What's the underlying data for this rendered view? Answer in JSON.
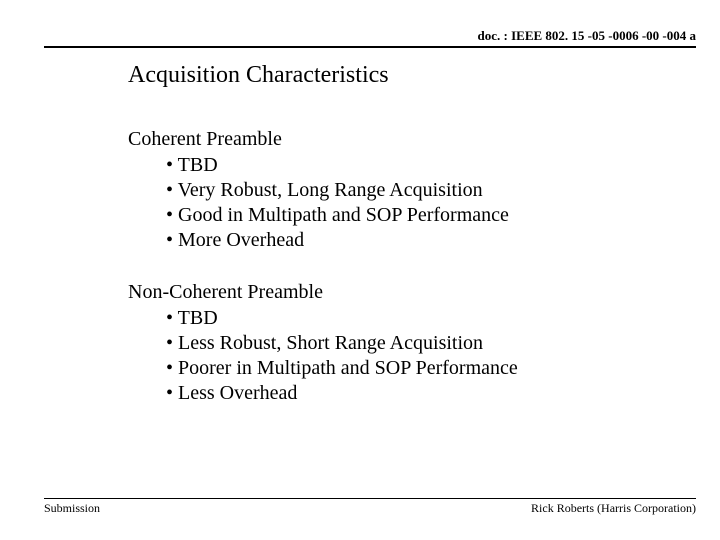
{
  "header": {
    "doc_ref": "doc. : IEEE 802. 15 -05 -0006 -00 -004 a"
  },
  "title": "Acquisition Characteristics",
  "sections": [
    {
      "heading": "Coherent Preamble",
      "bullets": [
        "TBD",
        "Very Robust, Long Range Acquisition",
        "Good in Multipath and SOP Performance",
        "More Overhead"
      ]
    },
    {
      "heading": "Non-Coherent Preamble",
      "bullets": [
        "TBD",
        "Less Robust, Short Range Acquisition",
        "Poorer in Multipath and SOP Performance",
        "Less Overhead"
      ]
    }
  ],
  "footer": {
    "left": "Submission",
    "right": "Rick Roberts (Harris Corporation)"
  },
  "style": {
    "background_color": "#ffffff",
    "text_color": "#000000",
    "title_fontsize": 24,
    "body_fontsize": 20,
    "header_fontsize": 13,
    "footer_fontsize": 12,
    "font_family": "Times New Roman"
  }
}
